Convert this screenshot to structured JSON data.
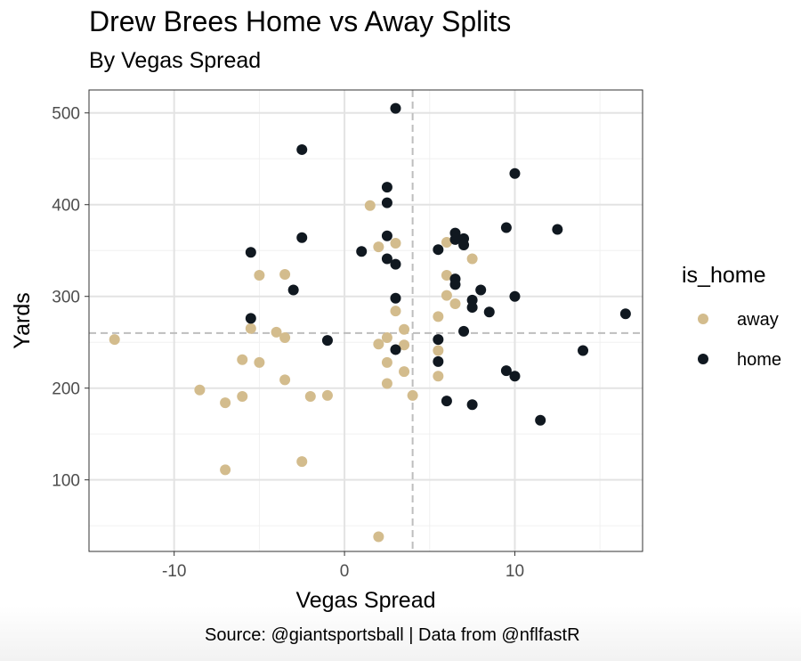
{
  "chart_data": {
    "type": "scatter",
    "title": "Drew Brees Home vs Away Splits",
    "subtitle": "By Vegas Spread",
    "caption": "Source: @giantsportsball | Data from @nflfastR",
    "xlabel": "Vegas Spread",
    "ylabel": "Yards",
    "xlim": [
      -15,
      17.5
    ],
    "ylim": [
      22,
      525
    ],
    "x_ticks": [
      -10,
      0,
      10
    ],
    "x_tick_labels": [
      "-10",
      "0",
      "10"
    ],
    "y_ticks": [
      100,
      200,
      300,
      400,
      500
    ],
    "y_tick_labels": [
      "100",
      "200",
      "300",
      "400",
      "500"
    ],
    "grid": true,
    "reference_lines": {
      "vline_x": 4,
      "hline_y": 260
    },
    "legend": {
      "title": "is_home",
      "placement": "right"
    },
    "series": [
      {
        "name": "away",
        "color": "#d3bc8d",
        "points": [
          {
            "x": -13.5,
            "y": 253
          },
          {
            "x": -8.5,
            "y": 198
          },
          {
            "x": -7,
            "y": 184
          },
          {
            "x": -7,
            "y": 111
          },
          {
            "x": -6,
            "y": 231
          },
          {
            "x": -6,
            "y": 191
          },
          {
            "x": -5.5,
            "y": 265
          },
          {
            "x": -5,
            "y": 323
          },
          {
            "x": -5,
            "y": 228
          },
          {
            "x": -4,
            "y": 261
          },
          {
            "x": -3.5,
            "y": 324
          },
          {
            "x": -3.5,
            "y": 255
          },
          {
            "x": -3.5,
            "y": 209
          },
          {
            "x": -2.5,
            "y": 120
          },
          {
            "x": -2,
            "y": 191
          },
          {
            "x": -1,
            "y": 192
          },
          {
            "x": 1.5,
            "y": 399
          },
          {
            "x": 2,
            "y": 354
          },
          {
            "x": 2,
            "y": 248
          },
          {
            "x": 2,
            "y": 38
          },
          {
            "x": 2.5,
            "y": 255
          },
          {
            "x": 2.5,
            "y": 228
          },
          {
            "x": 2.5,
            "y": 205
          },
          {
            "x": 3,
            "y": 358
          },
          {
            "x": 3,
            "y": 284
          },
          {
            "x": 3.5,
            "y": 264
          },
          {
            "x": 3.5,
            "y": 247
          },
          {
            "x": 3.5,
            "y": 218
          },
          {
            "x": 4,
            "y": 192
          },
          {
            "x": 5.5,
            "y": 278
          },
          {
            "x": 5.5,
            "y": 241
          },
          {
            "x": 5.5,
            "y": 213
          },
          {
            "x": 6,
            "y": 359
          },
          {
            "x": 6,
            "y": 323
          },
          {
            "x": 6,
            "y": 301
          },
          {
            "x": 6.5,
            "y": 292
          },
          {
            "x": 7.5,
            "y": 341
          }
        ]
      },
      {
        "name": "home",
        "color": "#101820",
        "points": [
          {
            "x": -5.5,
            "y": 348
          },
          {
            "x": -5.5,
            "y": 276
          },
          {
            "x": -3,
            "y": 307
          },
          {
            "x": -2.5,
            "y": 460
          },
          {
            "x": -2.5,
            "y": 364
          },
          {
            "x": -1,
            "y": 252
          },
          {
            "x": 1,
            "y": 349
          },
          {
            "x": 2.5,
            "y": 419
          },
          {
            "x": 2.5,
            "y": 402
          },
          {
            "x": 2.5,
            "y": 366
          },
          {
            "x": 2.5,
            "y": 341
          },
          {
            "x": 3,
            "y": 505
          },
          {
            "x": 3,
            "y": 335
          },
          {
            "x": 3,
            "y": 298
          },
          {
            "x": 3,
            "y": 242
          },
          {
            "x": 5.5,
            "y": 351
          },
          {
            "x": 5.5,
            "y": 253
          },
          {
            "x": 5.5,
            "y": 229
          },
          {
            "x": 6,
            "y": 186
          },
          {
            "x": 6.5,
            "y": 369
          },
          {
            "x": 6.5,
            "y": 362
          },
          {
            "x": 6.5,
            "y": 319
          },
          {
            "x": 6.5,
            "y": 313
          },
          {
            "x": 7,
            "y": 363
          },
          {
            "x": 7,
            "y": 356
          },
          {
            "x": 7,
            "y": 262
          },
          {
            "x": 7.5,
            "y": 296
          },
          {
            "x": 7.5,
            "y": 288
          },
          {
            "x": 7.5,
            "y": 182
          },
          {
            "x": 8,
            "y": 307
          },
          {
            "x": 8.5,
            "y": 283
          },
          {
            "x": 9.5,
            "y": 375
          },
          {
            "x": 9.5,
            "y": 219
          },
          {
            "x": 10,
            "y": 434
          },
          {
            "x": 10,
            "y": 300
          },
          {
            "x": 10,
            "y": 213
          },
          {
            "x": 11.5,
            "y": 165
          },
          {
            "x": 12.5,
            "y": 373
          },
          {
            "x": 14,
            "y": 241
          },
          {
            "x": 16.5,
            "y": 281
          }
        ]
      }
    ]
  }
}
